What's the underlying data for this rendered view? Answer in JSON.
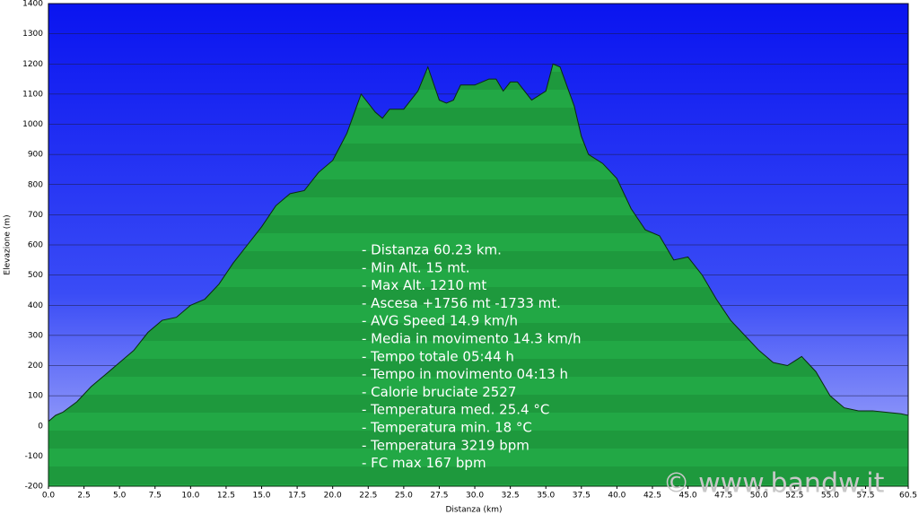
{
  "chart_data": {
    "type": "area",
    "x_label": "Distanza  (km)",
    "y_label": "Elevazione (m)",
    "x": [
      0,
      0.5,
      1,
      2,
      3,
      4,
      5,
      6,
      7,
      8,
      9,
      10,
      11,
      12,
      13,
      14,
      15,
      16,
      17,
      18,
      19,
      20,
      21,
      22,
      23,
      23.5,
      24,
      25,
      26,
      26.7,
      27.5,
      28,
      28.5,
      29,
      30,
      31,
      31.5,
      32,
      32.5,
      33,
      34,
      35,
      35.5,
      36,
      37,
      37.5,
      38,
      39,
      40,
      41,
      42,
      43,
      44,
      45,
      46,
      47,
      48,
      49,
      50,
      51,
      52,
      53,
      54,
      55,
      56,
      57,
      58,
      59,
      60,
      60.5
    ],
    "values": [
      15,
      35,
      45,
      80,
      130,
      170,
      210,
      250,
      310,
      350,
      360,
      400,
      420,
      470,
      540,
      600,
      660,
      730,
      770,
      780,
      840,
      880,
      970,
      1100,
      1040,
      1020,
      1050,
      1050,
      1110,
      1190,
      1080,
      1070,
      1080,
      1130,
      1130,
      1150,
      1150,
      1110,
      1140,
      1140,
      1080,
      1110,
      1200,
      1190,
      1060,
      960,
      900,
      870,
      820,
      720,
      650,
      630,
      550,
      560,
      500,
      420,
      350,
      300,
      250,
      210,
      200,
      230,
      180,
      100,
      60,
      50,
      50,
      45,
      40,
      35
    ],
    "color": "#1e9a3c",
    "xlim": [
      0,
      60.5
    ],
    "ylim": [
      -200,
      1400
    ],
    "yticks": [
      -200,
      -100,
      0,
      100,
      200,
      300,
      400,
      500,
      600,
      700,
      800,
      900,
      1000,
      1100,
      1200,
      1300,
      1400
    ],
    "xticks": [
      {
        "value": 0,
        "label": "0.0"
      },
      {
        "value": 2.5,
        "label": "2.5"
      },
      {
        "value": 5,
        "label": "5.0"
      },
      {
        "value": 7.5,
        "label": "7.5"
      },
      {
        "value": 10,
        "label": "10.0"
      },
      {
        "value": 12.5,
        "label": "12.5"
      },
      {
        "value": 15,
        "label": "15.0"
      },
      {
        "value": 17.5,
        "label": "17.5"
      },
      {
        "value": 20,
        "label": "20.0"
      },
      {
        "value": 22.5,
        "label": "22.5"
      },
      {
        "value": 25,
        "label": "25.0"
      },
      {
        "value": 27.5,
        "label": "27.5"
      },
      {
        "value": 30,
        "label": "30.0"
      },
      {
        "value": 32.5,
        "label": "32.5"
      },
      {
        "value": 35,
        "label": "35.0"
      },
      {
        "value": 37.5,
        "label": "37.5"
      },
      {
        "value": 40,
        "label": "40.0"
      },
      {
        "value": 42.5,
        "label": "42.5"
      },
      {
        "value": 45,
        "label": "45.0"
      },
      {
        "value": 47.5,
        "label": "47.5"
      },
      {
        "value": 50,
        "label": "50.0"
      },
      {
        "value": 52.5,
        "label": "52.5"
      },
      {
        "value": 55,
        "label": "55.0"
      },
      {
        "value": 57.5,
        "label": "57.5"
      },
      {
        "value": 60.5,
        "label": "60.5"
      }
    ],
    "grid": true,
    "annotations": [
      "- Distanza 60.23 km.",
      "- Min Alt. 15 mt.",
      "- Max Alt. 1210 mt",
      "- Ascesa +1756 mt -1733 mt.",
      "- AVG Speed 14.9 km/h",
      "- Media in movimento 14.3 km/h",
      "- Tempo totale 05:44 h",
      "- Tempo in movimento 04:13 h",
      "- Calorie bruciate 2527",
      "- Temperatura med. 25.4 °C",
      "- Temperatura min. 18 °C",
      "- Temperatura 3219 bpm",
      "- FC max 167 bpm"
    ],
    "watermark": "© www.bandw.it"
  }
}
